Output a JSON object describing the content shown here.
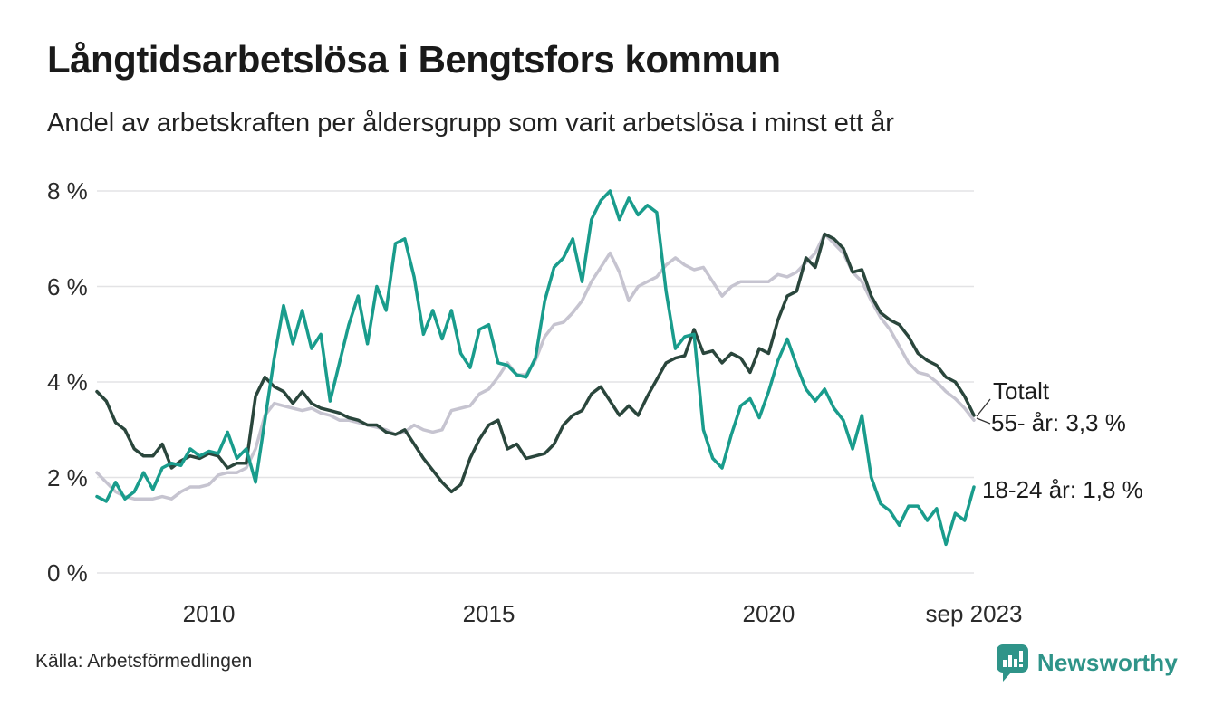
{
  "header": {
    "title": "Långtidsarbetslösa i Bengtsfors kommun",
    "subtitle": "Andel av arbetskraften per åldersgrupp som varit arbetslösa i minst ett år"
  },
  "chart_data": {
    "type": "line",
    "title": "Långtidsarbetslösa i Bengtsfors kommun",
    "x_axis": {
      "start": "2008-01",
      "end": "2023-09",
      "total_months": 188,
      "step_months_between_points": 2,
      "tick_labels": [
        "2010",
        "2015",
        "2020",
        "sep 2023"
      ],
      "tick_months_since_start": [
        24,
        84,
        144,
        188
      ]
    },
    "y_axis": {
      "unit": "%",
      "range": [
        0,
        8
      ],
      "ticks_percent": [
        8,
        6,
        4,
        2,
        0
      ],
      "tick_labels": [
        "8 %",
        "6 %",
        "4 %",
        "2 %",
        "0 %"
      ],
      "grid": true
    },
    "legend_position": "end-of-line-labels-right",
    "series": [
      {
        "name": "Totalt",
        "color": "#c6c4d0",
        "last_value_label": "Totalt",
        "values": [
          2.1,
          1.9,
          1.7,
          1.6,
          1.55,
          1.55,
          1.55,
          1.6,
          1.55,
          1.7,
          1.8,
          1.8,
          1.85,
          2.05,
          2.1,
          2.1,
          2.2,
          2.6,
          3.3,
          3.55,
          3.5,
          3.45,
          3.4,
          3.45,
          3.35,
          3.3,
          3.2,
          3.2,
          3.15,
          3.1,
          3.05,
          3.0,
          2.9,
          2.95,
          3.1,
          3.0,
          2.95,
          3.0,
          3.4,
          3.45,
          3.5,
          3.75,
          3.85,
          4.1,
          4.4,
          4.15,
          4.15,
          4.45,
          4.95,
          5.2,
          5.25,
          5.45,
          5.7,
          6.1,
          6.4,
          6.7,
          6.3,
          5.7,
          6.0,
          6.1,
          6.2,
          6.45,
          6.6,
          6.45,
          6.35,
          6.4,
          6.1,
          5.8,
          6.0,
          6.1,
          6.1,
          6.1,
          6.1,
          6.25,
          6.2,
          6.3,
          6.5,
          6.7,
          7.1,
          6.9,
          6.7,
          6.3,
          6.1,
          5.7,
          5.35,
          5.1,
          4.75,
          4.4,
          4.2,
          4.15,
          4.0,
          3.8,
          3.65,
          3.45,
          3.2
        ]
      },
      {
        "name": "55- år",
        "color": "#2a463c",
        "last_value_label": "55- år: 3,3 %",
        "values": [
          3.8,
          3.6,
          3.15,
          3.0,
          2.6,
          2.45,
          2.45,
          2.7,
          2.2,
          2.35,
          2.45,
          2.4,
          2.5,
          2.45,
          2.2,
          2.3,
          2.3,
          3.7,
          4.1,
          3.9,
          3.8,
          3.55,
          3.8,
          3.55,
          3.45,
          3.4,
          3.35,
          3.25,
          3.2,
          3.1,
          3.1,
          2.95,
          2.9,
          3.0,
          2.7,
          2.4,
          2.15,
          1.9,
          1.7,
          1.85,
          2.4,
          2.8,
          3.1,
          3.2,
          2.6,
          2.7,
          2.4,
          2.45,
          2.5,
          2.7,
          3.1,
          3.3,
          3.4,
          3.75,
          3.9,
          3.6,
          3.3,
          3.5,
          3.3,
          3.7,
          4.05,
          4.4,
          4.5,
          4.55,
          5.1,
          4.6,
          4.65,
          4.4,
          4.6,
          4.5,
          4.2,
          4.7,
          4.6,
          5.3,
          5.8,
          5.9,
          6.6,
          6.4,
          7.1,
          7.0,
          6.8,
          6.3,
          6.35,
          5.8,
          5.45,
          5.3,
          5.2,
          4.95,
          4.6,
          4.45,
          4.35,
          4.1,
          4.0,
          3.7,
          3.3
        ]
      },
      {
        "name": "18-24 år",
        "color": "#199c8c",
        "last_value_label": "18-24 år: 1,8 %",
        "values": [
          1.6,
          1.5,
          1.9,
          1.55,
          1.7,
          2.1,
          1.75,
          2.2,
          2.3,
          2.25,
          2.6,
          2.45,
          2.55,
          2.5,
          2.95,
          2.4,
          2.6,
          1.9,
          3.2,
          4.5,
          5.6,
          4.8,
          5.5,
          4.7,
          5.0,
          3.6,
          4.4,
          5.2,
          5.8,
          4.8,
          6.0,
          5.5,
          6.9,
          7.0,
          6.2,
          5.0,
          5.5,
          4.9,
          5.5,
          4.6,
          4.3,
          5.1,
          5.2,
          4.4,
          4.35,
          4.15,
          4.1,
          4.5,
          5.7,
          6.4,
          6.6,
          7.0,
          6.1,
          7.4,
          7.8,
          8.0,
          7.4,
          7.85,
          7.5,
          7.7,
          7.55,
          5.9,
          4.7,
          4.95,
          5.0,
          3.0,
          2.4,
          2.2,
          2.9,
          3.5,
          3.65,
          3.25,
          3.8,
          4.45,
          4.9,
          4.35,
          3.85,
          3.6,
          3.85,
          3.45,
          3.2,
          2.6,
          3.3,
          2.0,
          1.45,
          1.3,
          1.0,
          1.4,
          1.4,
          1.1,
          1.35,
          0.6,
          1.25,
          1.1,
          1.8
        ]
      }
    ]
  },
  "annotations": {
    "totalt": "Totalt",
    "age55": "55- år: 3,3 %",
    "age1824": "18-24 år: 1,8 %"
  },
  "footer": {
    "source": "Källa: Arbetsförmedlingen",
    "brand": "Newsworthy"
  },
  "colors": {
    "teal_line": "#199c8c",
    "dark_green_line": "#2a463c",
    "gray_line": "#c6c4d0",
    "gridline": "#e3e3e5",
    "text": "#1d1d1d",
    "brand_teal": "#2f9489",
    "connector": "#333333"
  }
}
